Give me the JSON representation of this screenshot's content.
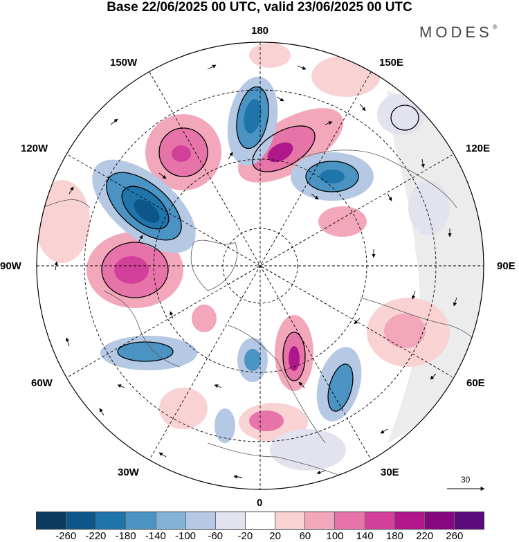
{
  "title": "Base 22/06/2025 00 UTC, valid 23/06/2025 00 UTC",
  "brand": "MODES",
  "brand_mark": "®",
  "longitude_labels": [
    "180",
    "150E",
    "120E",
    "90E",
    "60E",
    "30E",
    "0",
    "30W",
    "60W",
    "90W",
    "120W",
    "150W"
  ],
  "vector_reference": "30",
  "colorbar": {
    "ticks": [
      "-260",
      "-220",
      "-180",
      "-140",
      "-100",
      "-60",
      "-20",
      "20",
      "60",
      "100",
      "140",
      "180",
      "220",
      "260"
    ],
    "colors": [
      "#0b3a5e",
      "#0d5689",
      "#1f74aa",
      "#4a93c3",
      "#82b2d8",
      "#b5c8e4",
      "#e3e3f0",
      "#ffffff",
      "#f9d3d3",
      "#f3a7bb",
      "#e774a8",
      "#d2409a",
      "#b0178a",
      "#86077f",
      "#5b0a7b"
    ]
  }
}
